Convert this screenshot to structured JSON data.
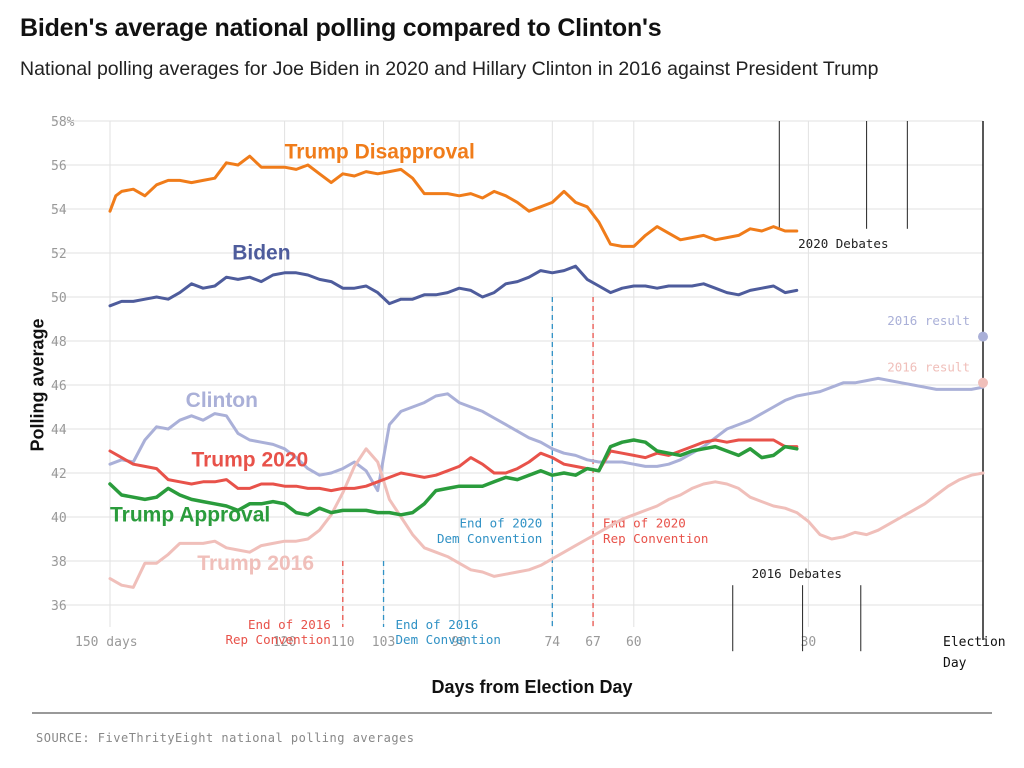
{
  "title": "Biden's average national polling compared to Clinton's",
  "subtitle": "National polling averages for Joe Biden in 2020 and Hillary Clinton in 2016 against President Trump",
  "source": "SOURCE: FiveThrityEight national polling averages",
  "chart_data": {
    "type": "line",
    "xlabel": "Days from Election Day",
    "ylabel": "Polling average",
    "xlim": [
      150,
      0
    ],
    "ylim": [
      35,
      58
    ],
    "y_ticks": [
      {
        "value": 58,
        "label": "58%"
      },
      {
        "value": 56,
        "label": "56"
      },
      {
        "value": 54,
        "label": "54"
      },
      {
        "value": 52,
        "label": "52"
      },
      {
        "value": 50,
        "label": "50"
      },
      {
        "value": 48,
        "label": "48"
      },
      {
        "value": 46,
        "label": "46"
      },
      {
        "value": 44,
        "label": "44"
      },
      {
        "value": 42,
        "label": "42"
      },
      {
        "value": 40,
        "label": "40"
      },
      {
        "value": 38,
        "label": "38"
      },
      {
        "value": 36,
        "label": "36"
      }
    ],
    "x_ticks": [
      {
        "value": 150,
        "label": "150 days"
      },
      {
        "value": 120,
        "label": "120"
      },
      {
        "value": 110,
        "label": "110"
      },
      {
        "value": 103,
        "label": "103"
      },
      {
        "value": 90,
        "label": "90"
      },
      {
        "value": 74,
        "label": "74"
      },
      {
        "value": 67,
        "label": "67"
      },
      {
        "value": 60,
        "label": "60"
      },
      {
        "value": 30,
        "label": "30"
      }
    ],
    "election_day_label": [
      "Election",
      "Day"
    ],
    "series": [
      {
        "name": "Trump Disapproval",
        "color": "#f07c1a",
        "width": 3,
        "x": [
          150,
          149,
          148,
          146,
          144,
          142,
          140,
          138,
          136,
          134,
          132,
          130,
          128,
          126,
          124,
          122,
          120,
          118,
          116,
          114,
          112,
          110,
          108,
          106,
          104,
          102,
          100,
          98,
          96,
          94,
          92,
          90,
          88,
          86,
          84,
          82,
          80,
          78,
          76,
          74,
          72,
          70,
          68,
          66,
          64,
          62,
          60,
          58,
          56,
          54,
          52,
          50,
          48,
          46,
          44,
          42,
          40,
          38,
          36,
          34,
          32
        ],
        "y": [
          53.9,
          54.6,
          54.8,
          54.9,
          54.6,
          55.1,
          55.3,
          55.3,
          55.2,
          55.3,
          55.4,
          56.1,
          56.0,
          56.4,
          55.9,
          55.9,
          55.9,
          55.8,
          56.0,
          55.6,
          55.2,
          55.6,
          55.5,
          55.7,
          55.6,
          55.7,
          55.8,
          55.4,
          54.7,
          54.7,
          54.7,
          54.6,
          54.7,
          54.5,
          54.8,
          54.6,
          54.3,
          53.9,
          54.1,
          54.3,
          54.8,
          54.3,
          54.1,
          53.4,
          52.4,
          52.3,
          52.3,
          52.8,
          53.2,
          52.9,
          52.6,
          52.7,
          52.8,
          52.6,
          52.7,
          52.8,
          53.1,
          53.0,
          53.2,
          53.0,
          53.0
        ]
      },
      {
        "name": "Biden",
        "color": "#4e5c9c",
        "width": 3,
        "x": [
          150,
          148,
          146,
          144,
          142,
          140,
          138,
          136,
          134,
          132,
          130,
          128,
          126,
          124,
          122,
          120,
          118,
          116,
          114,
          112,
          110,
          108,
          106,
          104,
          102,
          100,
          98,
          96,
          94,
          92,
          90,
          88,
          86,
          84,
          82,
          80,
          78,
          76,
          74,
          72,
          70,
          68,
          66,
          64,
          62,
          60,
          58,
          56,
          54,
          52,
          50,
          48,
          46,
          44,
          42,
          40,
          38,
          36,
          34,
          32
        ],
        "y": [
          49.6,
          49.8,
          49.8,
          49.9,
          50.0,
          49.9,
          50.2,
          50.6,
          50.4,
          50.5,
          50.9,
          50.8,
          50.9,
          50.7,
          51.0,
          51.1,
          51.1,
          51.0,
          50.8,
          50.7,
          50.4,
          50.4,
          50.5,
          50.2,
          49.7,
          49.9,
          49.9,
          50.1,
          50.1,
          50.2,
          50.4,
          50.3,
          50.0,
          50.2,
          50.6,
          50.7,
          50.9,
          51.2,
          51.1,
          51.2,
          51.4,
          50.8,
          50.5,
          50.2,
          50.4,
          50.5,
          50.5,
          50.4,
          50.5,
          50.5,
          50.5,
          50.6,
          50.4,
          50.2,
          50.1,
          50.3,
          50.4,
          50.5,
          50.2,
          50.3
        ]
      },
      {
        "name": "Clinton",
        "color": "#aab0d8",
        "width": 3,
        "x": [
          150,
          148,
          146,
          144,
          142,
          140,
          138,
          136,
          134,
          132,
          130,
          128,
          126,
          124,
          122,
          120,
          118,
          116,
          114,
          112,
          110,
          108,
          106,
          104,
          102,
          100,
          98,
          96,
          94,
          92,
          90,
          88,
          86,
          84,
          82,
          80,
          78,
          76,
          74,
          72,
          70,
          68,
          66,
          64,
          62,
          60,
          58,
          56,
          54,
          52,
          50,
          48,
          46,
          44,
          42,
          40,
          38,
          36,
          34,
          32,
          30,
          28,
          26,
          24,
          22,
          20,
          18,
          16,
          14,
          12,
          10,
          8,
          6,
          4,
          2,
          0
        ],
        "y": [
          42.4,
          42.6,
          42.5,
          43.5,
          44.1,
          44.0,
          44.4,
          44.6,
          44.4,
          44.7,
          44.6,
          43.8,
          43.5,
          43.4,
          43.3,
          43.1,
          42.7,
          42.2,
          41.9,
          42.0,
          42.2,
          42.5,
          42.1,
          41.2,
          44.2,
          44.8,
          45.0,
          45.2,
          45.5,
          45.6,
          45.2,
          45.0,
          44.8,
          44.5,
          44.2,
          43.9,
          43.6,
          43.4,
          43.1,
          42.9,
          42.8,
          42.6,
          42.5,
          42.5,
          42.5,
          42.4,
          42.3,
          42.3,
          42.4,
          42.6,
          42.9,
          43.2,
          43.6,
          44.0,
          44.2,
          44.4,
          44.7,
          45.0,
          45.3,
          45.5,
          45.6,
          45.7,
          45.9,
          46.1,
          46.1,
          46.2,
          46.3,
          46.2,
          46.1,
          46.0,
          45.9,
          45.8,
          45.8,
          45.8,
          45.8,
          45.9
        ]
      },
      {
        "name": "Trump 2016",
        "color": "#f0bfba",
        "width": 3,
        "x": [
          150,
          148,
          146,
          144,
          142,
          140,
          138,
          136,
          134,
          132,
          130,
          128,
          126,
          124,
          122,
          120,
          118,
          116,
          114,
          112,
          110,
          108,
          106,
          104,
          102,
          100,
          98,
          96,
          94,
          92,
          90,
          88,
          86,
          84,
          82,
          80,
          78,
          76,
          74,
          72,
          70,
          68,
          66,
          64,
          62,
          60,
          58,
          56,
          54,
          52,
          50,
          48,
          46,
          44,
          42,
          40,
          38,
          36,
          34,
          32,
          30,
          28,
          26,
          24,
          22,
          20,
          18,
          16,
          14,
          12,
          10,
          8,
          6,
          4,
          2,
          0
        ],
        "y": [
          37.2,
          36.9,
          36.8,
          37.9,
          37.9,
          38.3,
          38.8,
          38.8,
          38.8,
          38.9,
          38.6,
          38.5,
          38.4,
          38.7,
          38.8,
          38.9,
          38.9,
          39.0,
          39.4,
          40.1,
          41.1,
          42.3,
          43.1,
          42.5,
          40.8,
          40.0,
          39.2,
          38.6,
          38.4,
          38.2,
          37.9,
          37.6,
          37.5,
          37.3,
          37.4,
          37.5,
          37.6,
          37.8,
          38.1,
          38.4,
          38.7,
          39.0,
          39.3,
          39.6,
          39.9,
          40.1,
          40.3,
          40.5,
          40.8,
          41.0,
          41.3,
          41.5,
          41.6,
          41.5,
          41.3,
          40.9,
          40.7,
          40.5,
          40.4,
          40.2,
          39.8,
          39.2,
          39.0,
          39.1,
          39.3,
          39.2,
          39.4,
          39.7,
          40.0,
          40.3,
          40.6,
          41.0,
          41.4,
          41.7,
          41.9,
          42.0
        ]
      },
      {
        "name": "Trump 2020",
        "color": "#e8524a",
        "width": 3,
        "x": [
          150,
          148,
          146,
          144,
          142,
          140,
          138,
          136,
          134,
          132,
          130,
          128,
          126,
          124,
          122,
          120,
          118,
          116,
          114,
          112,
          110,
          108,
          106,
          104,
          102,
          100,
          98,
          96,
          94,
          92,
          90,
          88,
          86,
          84,
          82,
          80,
          78,
          76,
          74,
          72,
          70,
          68,
          66,
          64,
          62,
          60,
          58,
          56,
          54,
          52,
          50,
          48,
          46,
          44,
          42,
          40,
          38,
          36,
          34,
          32
        ],
        "y": [
          43.0,
          42.7,
          42.4,
          42.3,
          42.2,
          41.7,
          41.6,
          41.5,
          41.6,
          41.6,
          41.7,
          41.3,
          41.3,
          41.5,
          41.5,
          41.4,
          41.4,
          41.3,
          41.3,
          41.2,
          41.3,
          41.3,
          41.4,
          41.6,
          41.8,
          42.0,
          41.9,
          41.8,
          41.9,
          42.1,
          42.3,
          42.7,
          42.4,
          42.0,
          42.0,
          42.2,
          42.5,
          42.9,
          42.7,
          42.4,
          42.3,
          42.2,
          42.1,
          43.0,
          42.9,
          42.8,
          42.7,
          42.9,
          42.8,
          43.0,
          43.2,
          43.4,
          43.5,
          43.4,
          43.5,
          43.5,
          43.5,
          43.5,
          43.2,
          43.2
        ]
      },
      {
        "name": "Trump Approval",
        "color": "#2a9c3c",
        "width": 3.5,
        "x": [
          150,
          148,
          146,
          144,
          142,
          140,
          138,
          136,
          134,
          132,
          130,
          128,
          126,
          124,
          122,
          120,
          118,
          116,
          114,
          112,
          110,
          108,
          106,
          104,
          102,
          100,
          98,
          96,
          94,
          92,
          90,
          88,
          86,
          84,
          82,
          80,
          78,
          76,
          74,
          72,
          70,
          68,
          66,
          64,
          62,
          60,
          58,
          56,
          54,
          52,
          50,
          48,
          46,
          44,
          42,
          40,
          38,
          36,
          34,
          32
        ],
        "y": [
          41.5,
          41.0,
          40.9,
          40.8,
          40.9,
          41.3,
          41.0,
          40.8,
          40.7,
          40.6,
          40.5,
          40.3,
          40.6,
          40.6,
          40.7,
          40.6,
          40.2,
          40.1,
          40.4,
          40.2,
          40.3,
          40.3,
          40.3,
          40.2,
          40.2,
          40.1,
          40.2,
          40.6,
          41.2,
          41.3,
          41.4,
          41.4,
          41.4,
          41.6,
          41.8,
          41.7,
          41.9,
          42.1,
          41.9,
          42.0,
          41.9,
          42.2,
          42.1,
          43.2,
          43.4,
          43.5,
          43.4,
          43.0,
          42.9,
          42.8,
          43.0,
          43.1,
          43.2,
          43.0,
          42.8,
          43.1,
          42.7,
          42.8,
          43.2,
          43.1
        ]
      }
    ],
    "series_labels": [
      {
        "text": "Trump Disapproval",
        "x": 120,
        "y": 56.3,
        "color": "#f07c1a"
      },
      {
        "text": "Biden",
        "x": 129,
        "y": 51.7,
        "color": "#4e5c9c"
      },
      {
        "text": "Clinton",
        "x": 137,
        "y": 45.0,
        "color": "#aab0d8"
      },
      {
        "text": "Trump 2020",
        "x": 136,
        "y": 42.3,
        "color": "#e8524a"
      },
      {
        "text": "Trump Approval",
        "x": 150,
        "y": 39.8,
        "color": "#2a9c3c"
      },
      {
        "text": "Trump 2016",
        "x": 135,
        "y": 37.6,
        "color": "#f0bfba"
      }
    ],
    "conventions": [
      {
        "day": 110,
        "color": "#e8524a",
        "lines": [
          "End of 2016",
          "Rep Convention"
        ],
        "y_from": 38,
        "y_to": 35,
        "anchor": "end",
        "dx": -12,
        "text_y": [
          35.1,
          34.4
        ]
      },
      {
        "day": 103,
        "color": "#3192c5",
        "lines": [
          "End of 2016",
          "Dem Convention"
        ],
        "y_from": 38,
        "y_to": 35,
        "anchor": "start",
        "dx": 12,
        "text_y": [
          35.1,
          34.4
        ]
      },
      {
        "day": 74,
        "color": "#3192c5",
        "lines": [
          "End of 2020",
          "Dem Convention"
        ],
        "y_from": 50,
        "y_to": 35,
        "anchor": "end",
        "dx": -10,
        "text_y": [
          39.7,
          39.0
        ]
      },
      {
        "day": 67,
        "color": "#e8524a",
        "lines": [
          "End of 2020",
          "Rep Convention"
        ],
        "y_from": 50,
        "y_to": 35,
        "anchor": "start",
        "dx": 10,
        "text_y": [
          39.7,
          39.0
        ]
      }
    ],
    "debates_2020": {
      "label": "2020 Debates",
      "days": [
        35,
        20,
        13
      ],
      "y_top": 58,
      "y_bottom": 53.1,
      "label_y": 52.4
    },
    "debates_2016": {
      "label": "2016 Debates",
      "days": [
        43,
        31,
        21
      ],
      "y_top": 36.9,
      "y_bottom": 33.9,
      "label_y": 37.4
    },
    "results_2016": [
      {
        "label": "2016 result",
        "value": 48.2,
        "color": "#aab0d8"
      },
      {
        "label": "2016 result",
        "value": 46.1,
        "color": "#f0bfba"
      }
    ]
  }
}
